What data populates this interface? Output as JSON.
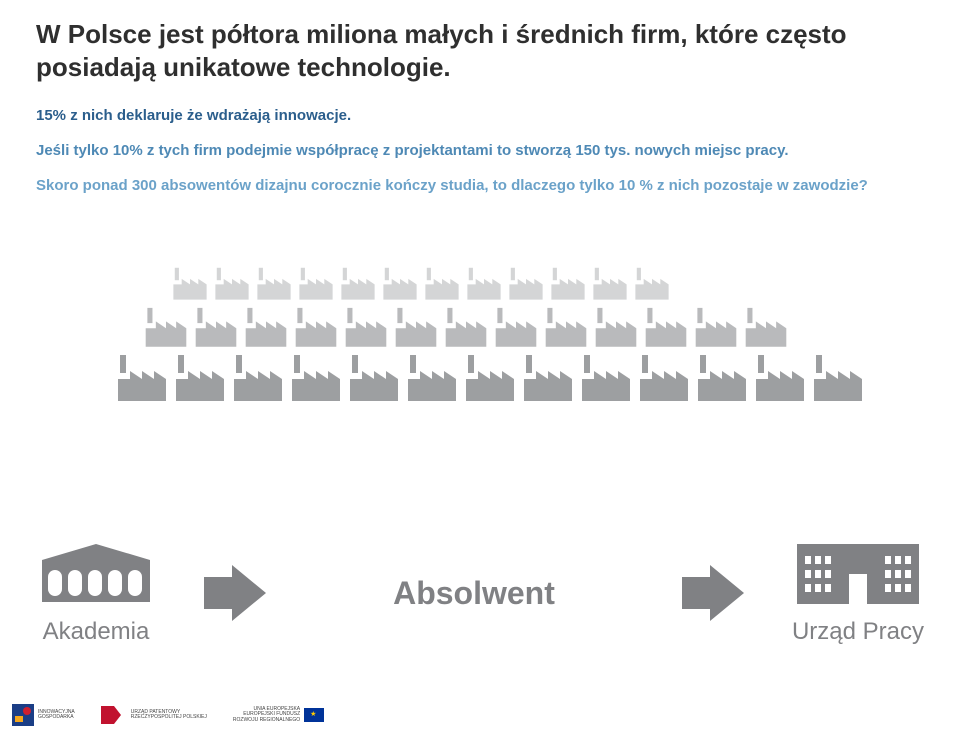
{
  "headline": "W Polsce jest półtora miliona małych i średnich firm, które często posiadają unikatowe technologie.",
  "paragraphs": {
    "p1": "15% z nich deklaruje że wdrażają innowacje.",
    "p2": "Jeśli tylko 10% z tych firm podejmie współpracę z projektantami to stworzą 150 tys. nowych miejsc pracy.",
    "p3": "Skoro ponad 300 absowentów dizajnu corocznie kończy studia, to dlaczego tylko 10 % z nich pozostaje w zawodzie?"
  },
  "colors": {
    "headline": "#2f2f2f",
    "p1": "#2b5e8c",
    "p2": "#4e89b5",
    "p3": "#6ba2c9",
    "gray": "#808184",
    "factory_row1": "#d4d5d6",
    "factory_row2": "#b9babc",
    "factory_row3": "#9d9fa1",
    "arrow": "#808184"
  },
  "factories": {
    "row1_count": 12,
    "row2_count": 13,
    "row3_count": 13,
    "row1_scale": 0.7,
    "row2_scale": 0.85,
    "row3_scale": 1.0,
    "base_width": 52,
    "base_height": 48
  },
  "bottom": {
    "akademia": "Akademia",
    "absolwent": "Absolwent",
    "urzad": "Urząd Pracy"
  },
  "logos": {
    "l1_line1": "INNOWACYJNA",
    "l1_line2": "GOSPODARKA",
    "l2_line1": "URZĄD PATENTOWY",
    "l2_line2": "RZECZYPOSPOLITEJ POLSKIEJ",
    "l3_line1": "UNIA EUROPEJSKA",
    "l3_line2": "EUROPEJSKI FUNDUSZ",
    "l3_line3": "ROZWOJU REGIONALNEGO"
  }
}
